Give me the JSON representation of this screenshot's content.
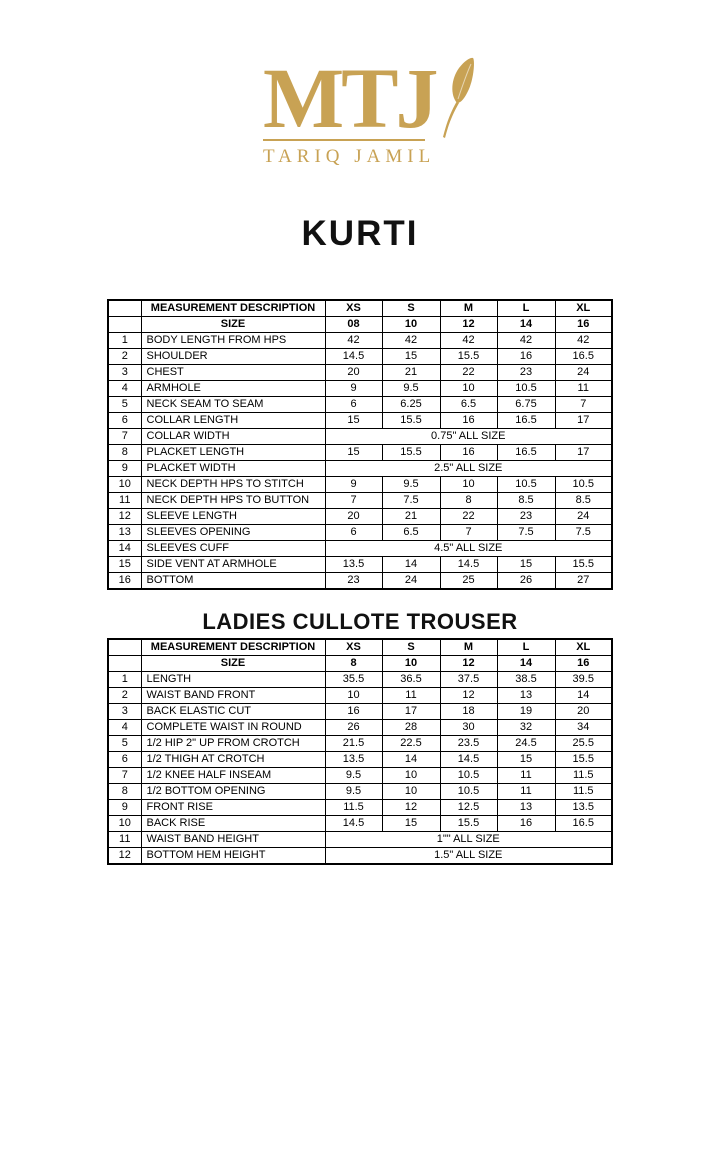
{
  "logo": {
    "monogram": "MTJ",
    "brand_name": "TARIQ JAMIL",
    "gold_color": "#c8a254",
    "icon": "feather-quill-icon"
  },
  "page": {
    "title1": "KURTI",
    "title2": "LADIES CULLOTE TROUSER"
  },
  "kurti_table": {
    "header": {
      "description": "MEASUREMENT DESCRIPTION",
      "sizes": [
        "XS",
        "S",
        "M",
        "L",
        "XL"
      ]
    },
    "size_row": {
      "label": "SIZE",
      "values": [
        "08",
        "10",
        "12",
        "14",
        "16"
      ]
    },
    "rows": [
      {
        "no": "1",
        "desc": "BODY LENGTH FROM HPS",
        "values": [
          "42",
          "42",
          "42",
          "42",
          "42"
        ]
      },
      {
        "no": "2",
        "desc": "SHOULDER",
        "values": [
          "14.5",
          "15",
          "15.5",
          "16",
          "16.5"
        ]
      },
      {
        "no": "3",
        "desc": "CHEST",
        "values": [
          "20",
          "21",
          "22",
          "23",
          "24"
        ]
      },
      {
        "no": "4",
        "desc": "ARMHOLE",
        "values": [
          "9",
          "9.5",
          "10",
          "10.5",
          "11"
        ]
      },
      {
        "no": "5",
        "desc": "NECK SEAM TO SEAM",
        "values": [
          "6",
          "6.25",
          "6.5",
          "6.75",
          "7"
        ]
      },
      {
        "no": "6",
        "desc": "COLLAR LENGTH",
        "values": [
          "15",
          "15.5",
          "16",
          "16.5",
          "17"
        ]
      },
      {
        "no": "7",
        "desc": "COLLAR WIDTH",
        "span": "0.75\" ALL SIZE"
      },
      {
        "no": "8",
        "desc": "PLACKET LENGTH",
        "values": [
          "15",
          "15.5",
          "16",
          "16.5",
          "17"
        ]
      },
      {
        "no": "9",
        "desc": "PLACKET WIDTH",
        "span": "2.5\" ALL SIZE"
      },
      {
        "no": "10",
        "desc": "NECK DEPTH HPS TO STITCH",
        "values": [
          "9",
          "9.5",
          "10",
          "10.5",
          "10.5"
        ]
      },
      {
        "no": "11",
        "desc": "NECK DEPTH HPS TO BUTTON",
        "values": [
          "7",
          "7.5",
          "8",
          "8.5",
          "8.5"
        ]
      },
      {
        "no": "12",
        "desc": "SLEEVE LENGTH",
        "values": [
          "20",
          "21",
          "22",
          "23",
          "24"
        ]
      },
      {
        "no": "13",
        "desc": "SLEEVES OPENING",
        "values": [
          "6",
          "6.5",
          "7",
          "7.5",
          "7.5"
        ]
      },
      {
        "no": "14",
        "desc": "SLEEVES CUFF",
        "span": "4.5\" ALL SIZE"
      },
      {
        "no": "15",
        "desc": "SIDE VENT AT ARMHOLE",
        "values": [
          "13.5",
          "14",
          "14.5",
          "15",
          "15.5"
        ]
      },
      {
        "no": "16",
        "desc": "BOTTOM",
        "values": [
          "23",
          "24",
          "25",
          "26",
          "27"
        ]
      }
    ]
  },
  "trouser_table": {
    "header": {
      "description": "MEASUREMENT DESCRIPTION",
      "sizes": [
        "XS",
        "S",
        "M",
        "L",
        "XL"
      ]
    },
    "size_row": {
      "label": "SIZE",
      "values": [
        "8",
        "10",
        "12",
        "14",
        "16"
      ]
    },
    "rows": [
      {
        "no": "1",
        "desc": "LENGTH",
        "values": [
          "35.5",
          "36.5",
          "37.5",
          "38.5",
          "39.5"
        ]
      },
      {
        "no": "2",
        "desc": "WAIST BAND FRONT",
        "values": [
          "10",
          "11",
          "12",
          "13",
          "14"
        ]
      },
      {
        "no": "3",
        "desc": "BACK ELASTIC CUT",
        "values": [
          "16",
          "17",
          "18",
          "19",
          "20"
        ]
      },
      {
        "no": "4",
        "desc": "COMPLETE WAIST IN ROUND",
        "values": [
          "26",
          "28",
          "30",
          "32",
          "34"
        ]
      },
      {
        "no": "5",
        "desc": "1/2 HIP 2\" UP FROM CROTCH",
        "values": [
          "21.5",
          "22.5",
          "23.5",
          "24.5",
          "25.5"
        ]
      },
      {
        "no": "6",
        "desc": "1/2 THIGH AT CROTCH",
        "values": [
          "13.5",
          "14",
          "14.5",
          "15",
          "15.5"
        ]
      },
      {
        "no": "7",
        "desc": "1/2 KNEE HALF INSEAM",
        "values": [
          "9.5",
          "10",
          "10.5",
          "11",
          "11.5"
        ]
      },
      {
        "no": "8",
        "desc": "1/2 BOTTOM OPENING",
        "values": [
          "9.5",
          "10",
          "10.5",
          "11",
          "11.5"
        ]
      },
      {
        "no": "9",
        "desc": "FRONT RISE",
        "values": [
          "11.5",
          "12",
          "12.5",
          "13",
          "13.5"
        ]
      },
      {
        "no": "10",
        "desc": "BACK RISE",
        "values": [
          "14.5",
          "15",
          "15.5",
          "16",
          "16.5"
        ]
      },
      {
        "no": "11",
        "desc": "WAIST BAND HEIGHT",
        "span": "1\"\" ALL SIZE"
      },
      {
        "no": "12",
        "desc": "BOTTOM HEM HEIGHT",
        "span": "1.5\" ALL SIZE"
      }
    ]
  }
}
